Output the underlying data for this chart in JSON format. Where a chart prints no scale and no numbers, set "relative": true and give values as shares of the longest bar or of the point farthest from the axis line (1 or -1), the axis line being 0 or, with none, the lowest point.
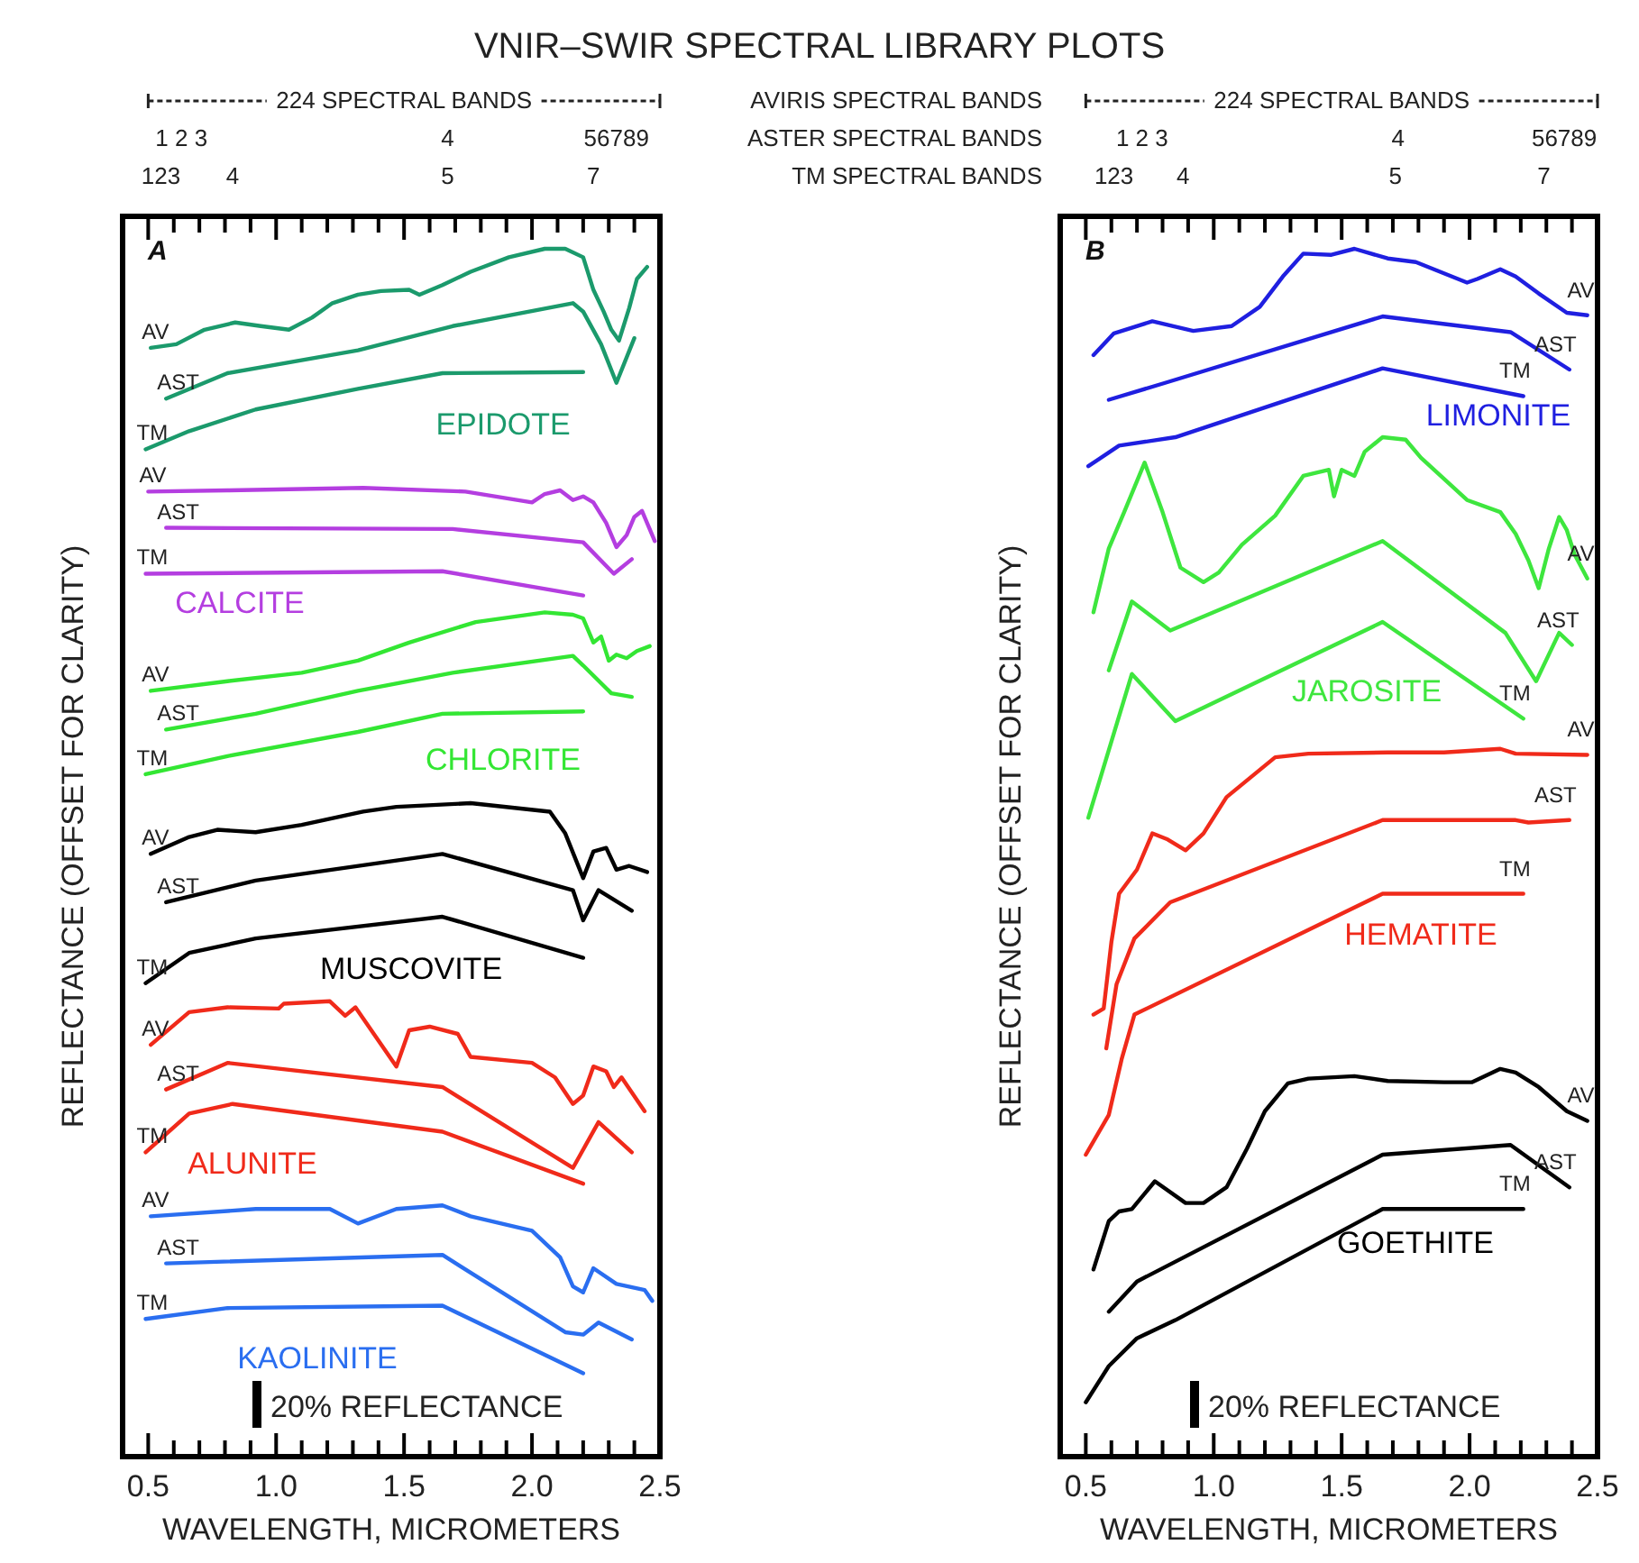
{
  "chart_data": [
    {
      "type": "line",
      "title": "VNIR–SWIR SPECTRAL LIBRARY PLOTS",
      "subtitle": "A",
      "xlabel": "WAVELENGTH, MICROMETERS",
      "ylabel": "REFLECTANCE (OFFSET FOR CLARITY)",
      "relative": true,
      "xlim": [
        0.4,
        2.5
      ],
      "xticks": [
        {
          "value": 0.5,
          "label": "0.5"
        },
        {
          "value": 0.6,
          "label": null
        },
        {
          "value": 0.7,
          "label": null
        },
        {
          "value": 0.8,
          "label": null
        },
        {
          "value": 0.9,
          "label": null
        },
        {
          "value": 1,
          "label": "1.0"
        },
        {
          "value": 1.1,
          "label": null
        },
        {
          "value": 1.2,
          "label": null
        },
        {
          "value": 1.3,
          "label": null
        },
        {
          "value": 1.4,
          "label": null
        },
        {
          "value": 1.5,
          "label": "1.5"
        },
        {
          "value": 1.6,
          "label": null
        },
        {
          "value": 1.7,
          "label": null
        },
        {
          "value": 1.8,
          "label": null
        },
        {
          "value": 1.9,
          "label": null
        },
        {
          "value": 2,
          "label": "2.0"
        },
        {
          "value": 2.1,
          "label": null
        },
        {
          "value": 2.2,
          "label": null
        },
        {
          "value": 2.3,
          "label": null
        },
        {
          "value": 2.4,
          "label": null
        },
        {
          "value": 2.5,
          "label": "2.5"
        }
      ],
      "series": [
        {
          "name": "AV",
          "color": "#1b9a6c",
          "x": [
            0.51,
            0.61,
            0.72,
            0.84,
            0.94,
            1.05,
            1.14,
            1.22,
            1.32,
            1.41,
            1.52,
            1.56,
            1.65,
            1.76,
            1.91,
            2.05,
            2.13,
            2.2,
            2.24,
            2.28,
            2.31,
            2.34,
            2.38,
            2.41,
            2.45
          ],
          "values": [
            0.918,
            0.921,
            0.933,
            0.939,
            0.936,
            0.933,
            0.943,
            0.955,
            0.962,
            0.965,
            0.966,
            0.962,
            0.97,
            0.981,
            0.993,
            1,
            1,
            0.993,
            0.966,
            0.948,
            0.933,
            0.924,
            0.951,
            0.975,
            0.985
          ]
        },
        {
          "name": "AST",
          "color": "#1b9a6c",
          "x": [
            0.57,
            0.81,
            1.32,
            1.69,
            2.16,
            2.2,
            2.27,
            2.33,
            2.4
          ],
          "values": [
            0.876,
            0.897,
            0.916,
            0.936,
            0.955,
            0.948,
            0.921,
            0.889,
            0.926
          ]
        },
        {
          "name": "TM",
          "color": "#1b9a6c",
          "x": [
            0.49,
            0.66,
            0.92,
            1.32,
            1.65,
            2.2
          ],
          "values": [
            0.834,
            0.849,
            0.867,
            0.884,
            0.897,
            0.898
          ]
        },
        {
          "name": "AV",
          "color": "#b43ee0",
          "x": [
            0.5,
            0.81,
            1.34,
            1.74,
            2,
            2.05,
            2.11,
            2.16,
            2.2,
            2.24,
            2.29,
            2.33,
            2.37,
            2.4,
            2.43,
            2.48
          ],
          "values": [
            0.799,
            0.8,
            0.802,
            0.799,
            0.79,
            0.797,
            0.8,
            0.792,
            0.795,
            0.79,
            0.773,
            0.753,
            0.763,
            0.778,
            0.783,
            0.758
          ]
        },
        {
          "name": "AST",
          "color": "#b43ee0",
          "x": [
            0.57,
            1.69,
            2.2,
            2.32,
            2.39
          ],
          "values": [
            0.769,
            0.768,
            0.757,
            0.731,
            0.743
          ]
        },
        {
          "name": "TM",
          "color": "#b43ee0",
          "x": [
            0.49,
            1.65,
            2.2
          ],
          "values": [
            0.731,
            0.733,
            0.713
          ]
        },
        {
          "name": "AV",
          "color": "#33e633",
          "x": [
            0.51,
            0.81,
            1.1,
            1.32,
            1.52,
            1.78,
            2.05,
            2.16,
            2.2,
            2.24,
            2.27,
            2.3,
            2.33,
            2.37,
            2.41,
            2.46
          ],
          "values": [
            0.634,
            0.642,
            0.649,
            0.659,
            0.674,
            0.691,
            0.699,
            0.697,
            0.694,
            0.674,
            0.679,
            0.659,
            0.664,
            0.661,
            0.667,
            0.671
          ]
        },
        {
          "name": "AST",
          "color": "#33e633",
          "x": [
            0.57,
            0.92,
            1.32,
            1.69,
            2.16,
            2.2,
            2.31,
            2.39
          ],
          "values": [
            0.602,
            0.615,
            0.634,
            0.649,
            0.663,
            0.655,
            0.632,
            0.629
          ]
        },
        {
          "name": "TM",
          "color": "#33e633",
          "x": [
            0.49,
            0.81,
            1.32,
            1.65,
            2.2
          ],
          "values": [
            0.565,
            0.58,
            0.6,
            0.615,
            0.617
          ]
        },
        {
          "name": "AV",
          "color": "#000000",
          "x": [
            0.51,
            0.66,
            0.77,
            0.92,
            1.1,
            1.34,
            1.47,
            1.76,
            2.07,
            2.13,
            2.2,
            2.24,
            2.29,
            2.33,
            2.38,
            2.45
          ],
          "values": [
            0.499,
            0.513,
            0.519,
            0.517,
            0.523,
            0.534,
            0.538,
            0.541,
            0.534,
            0.516,
            0.479,
            0.501,
            0.504,
            0.486,
            0.489,
            0.484
          ]
        },
        {
          "name": "AST",
          "color": "#000000",
          "x": [
            0.57,
            0.92,
            1.65,
            2.16,
            2.2,
            2.26,
            2.39
          ],
          "values": [
            0.459,
            0.477,
            0.499,
            0.469,
            0.444,
            0.469,
            0.452
          ]
        },
        {
          "name": "TM",
          "color": "#000000",
          "x": [
            0.49,
            0.66,
            0.92,
            1.65,
            2.2
          ],
          "values": [
            0.392,
            0.417,
            0.429,
            0.447,
            0.413
          ]
        },
        {
          "name": "AV",
          "color": "#f02a1a",
          "x": [
            0.51,
            0.66,
            0.81,
            1.01,
            1.03,
            1.21,
            1.27,
            1.31,
            1.47,
            1.52,
            1.6,
            1.71,
            1.76,
            2,
            2.09,
            2.16,
            2.2,
            2.24,
            2.29,
            2.32,
            2.35,
            2.44
          ],
          "values": [
            0.341,
            0.368,
            0.372,
            0.371,
            0.375,
            0.377,
            0.365,
            0.372,
            0.323,
            0.353,
            0.356,
            0.35,
            0.331,
            0.326,
            0.314,
            0.292,
            0.299,
            0.323,
            0.319,
            0.306,
            0.314,
            0.286
          ]
        },
        {
          "name": "AST",
          "color": "#f02a1a",
          "x": [
            0.57,
            0.81,
            1.65,
            2.16,
            2.26,
            2.39
          ],
          "values": [
            0.304,
            0.326,
            0.306,
            0.239,
            0.277,
            0.252
          ]
        },
        {
          "name": "TM",
          "color": "#f02a1a",
          "x": [
            0.49,
            0.66,
            0.83,
            1.65,
            2.2
          ],
          "values": [
            0.252,
            0.284,
            0.292,
            0.269,
            0.226
          ]
        },
        {
          "name": "AV",
          "color": "#2a6ef0",
          "x": [
            0.51,
            0.92,
            1.21,
            1.32,
            1.47,
            1.65,
            1.76,
            2,
            2.11,
            2.16,
            2.2,
            2.24,
            2.33,
            2.44,
            2.47
          ],
          "values": [
            0.199,
            0.205,
            0.205,
            0.193,
            0.205,
            0.208,
            0.199,
            0.187,
            0.165,
            0.141,
            0.136,
            0.156,
            0.143,
            0.138,
            0.129
          ]
        },
        {
          "name": "AST",
          "color": "#2a6ef0",
          "x": [
            0.57,
            1.65,
            2.13,
            2.2,
            2.26,
            2.39
          ],
          "values": [
            0.16,
            0.167,
            0.103,
            0.101,
            0.111,
            0.097
          ]
        },
        {
          "name": "TM",
          "color": "#2a6ef0",
          "x": [
            0.49,
            0.81,
            1.65,
            2.2
          ],
          "values": [
            0.114,
            0.123,
            0.125,
            0.069
          ]
        }
      ],
      "annotations": [
        "EPIDOTE",
        "CALCITE",
        "CHLORITE",
        "MUSCOVITE",
        "ALUNITE",
        "KAOLINITE",
        "224 SPECTRAL BANDS",
        "1 2 3",
        "4",
        "56789",
        "123",
        "4",
        "5",
        "7",
        "20% REFLECTANCE"
      ]
    },
    {
      "type": "line",
      "subtitle": "B",
      "xlabel": "WAVELENGTH, MICROMETERS",
      "ylabel": "REFLECTANCE (OFFSET FOR CLARITY)",
      "relative": true,
      "xlim": [
        0.4,
        2.5
      ],
      "xticks": [
        {
          "value": 0.5,
          "label": "0.5"
        },
        {
          "value": 0.6,
          "label": null
        },
        {
          "value": 0.7,
          "label": null
        },
        {
          "value": 0.8,
          "label": null
        },
        {
          "value": 0.9,
          "label": null
        },
        {
          "value": 1,
          "label": "1.0"
        },
        {
          "value": 1.1,
          "label": null
        },
        {
          "value": 1.2,
          "label": null
        },
        {
          "value": 1.3,
          "label": null
        },
        {
          "value": 1.4,
          "label": null
        },
        {
          "value": 1.5,
          "label": "1.5"
        },
        {
          "value": 1.6,
          "label": null
        },
        {
          "value": 1.7,
          "label": null
        },
        {
          "value": 1.8,
          "label": null
        },
        {
          "value": 1.9,
          "label": null
        },
        {
          "value": 2,
          "label": "2.0"
        },
        {
          "value": 2.1,
          "label": null
        },
        {
          "value": 2.2,
          "label": null
        },
        {
          "value": 2.3,
          "label": null
        },
        {
          "value": 2.4,
          "label": null
        },
        {
          "value": 2.5,
          "label": "2.5"
        }
      ],
      "series": [
        {
          "name": "AV",
          "color": "#1f1fe0",
          "x": [
            0.53,
            0.61,
            0.76,
            0.92,
            1.07,
            1.18,
            1.27,
            1.35,
            1.46,
            1.55,
            1.68,
            1.79,
            1.99,
            2.03,
            2.12,
            2.18,
            2.27,
            2.38,
            2.46
          ],
          "values": [
            0.912,
            0.93,
            0.94,
            0.932,
            0.936,
            0.952,
            0.977,
            0.996,
            0.995,
            1,
            0.992,
            0.989,
            0.972,
            0.975,
            0.983,
            0.977,
            0.963,
            0.947,
            0.945
          ]
        },
        {
          "name": "AST",
          "color": "#1f1fe0",
          "x": [
            0.59,
            0.81,
            1.66,
            2.16,
            2.39
          ],
          "values": [
            0.875,
            0.889,
            0.944,
            0.931,
            0.9
          ]
        },
        {
          "name": "TM",
          "color": "#1f1fe0",
          "x": [
            0.51,
            0.63,
            0.85,
            1.66,
            2.21
          ],
          "values": [
            0.82,
            0.837,
            0.844,
            0.901,
            0.878
          ]
        },
        {
          "name": "AV",
          "color": "#3ee63e",
          "x": [
            0.53,
            0.59,
            0.65,
            0.73,
            0.8,
            0.87,
            0.96,
            1.02,
            1.11,
            1.24,
            1.35,
            1.45,
            1.47,
            1.5,
            1.55,
            1.59,
            1.66,
            1.75,
            1.81,
            1.99,
            2.12,
            2.18,
            2.23,
            2.27,
            2.31,
            2.35,
            2.38,
            2.41,
            2.46
          ],
          "values": [
            0.699,
            0.752,
            0.782,
            0.823,
            0.782,
            0.736,
            0.724,
            0.732,
            0.755,
            0.779,
            0.812,
            0.817,
            0.795,
            0.817,
            0.812,
            0.832,
            0.844,
            0.842,
            0.827,
            0.792,
            0.782,
            0.764,
            0.742,
            0.719,
            0.752,
            0.778,
            0.767,
            0.747,
            0.727
          ]
        },
        {
          "name": "AST",
          "color": "#3ee63e",
          "x": [
            0.59,
            0.68,
            0.83,
            1.66,
            2.14,
            2.26,
            2.35,
            2.4
          ],
          "values": [
            0.651,
            0.708,
            0.684,
            0.758,
            0.682,
            0.642,
            0.682,
            0.672
          ]
        },
        {
          "name": "TM",
          "color": "#3ee63e",
          "x": [
            0.51,
            0.68,
            0.85,
            1.66,
            2.21
          ],
          "values": [
            0.529,
            0.648,
            0.609,
            0.691,
            0.611
          ]
        },
        {
          "name": "AV",
          "color": "#f02a1a",
          "x": [
            0.53,
            0.57,
            0.6,
            0.63,
            0.7,
            0.76,
            0.82,
            0.89,
            0.96,
            1.05,
            1.24,
            1.37,
            1.68,
            1.9,
            2.12,
            2.18,
            2.46
          ],
          "values": [
            0.366,
            0.371,
            0.426,
            0.466,
            0.486,
            0.516,
            0.511,
            0.502,
            0.516,
            0.546,
            0.579,
            0.582,
            0.583,
            0.583,
            0.586,
            0.582,
            0.581
          ]
        },
        {
          "name": "AST",
          "color": "#f02a1a",
          "x": [
            0.58,
            0.62,
            0.69,
            0.83,
            1.66,
            2.18,
            2.23,
            2.39
          ],
          "values": [
            0.338,
            0.391,
            0.429,
            0.459,
            0.527,
            0.527,
            0.525,
            0.527
          ]
        },
        {
          "name": "TM",
          "color": "#f02a1a",
          "x": [
            0.5,
            0.59,
            0.64,
            0.69,
            1.66,
            2.21
          ],
          "values": [
            0.25,
            0.283,
            0.329,
            0.366,
            0.466,
            0.466
          ]
        },
        {
          "name": "AV",
          "color": "#000000",
          "x": [
            0.53,
            0.59,
            0.63,
            0.68,
            0.77,
            0.89,
            0.96,
            1.05,
            1.13,
            1.2,
            1.29,
            1.37,
            1.55,
            1.68,
            1.9,
            2.01,
            2.12,
            2.18,
            2.27,
            2.38,
            2.46
          ],
          "values": [
            0.155,
            0.195,
            0.203,
            0.205,
            0.228,
            0.21,
            0.21,
            0.223,
            0.255,
            0.286,
            0.309,
            0.313,
            0.315,
            0.311,
            0.31,
            0.31,
            0.321,
            0.318,
            0.306,
            0.286,
            0.278
          ]
        },
        {
          "name": "AST",
          "color": "#000000",
          "x": [
            0.59,
            0.7,
            1.66,
            2.16,
            2.39
          ],
          "values": [
            0.12,
            0.145,
            0.25,
            0.258,
            0.223
          ]
        },
        {
          "name": "TM",
          "color": "#000000",
          "x": [
            0.5,
            0.59,
            0.7,
            0.85,
            1.66,
            2.21
          ],
          "values": [
            0.045,
            0.075,
            0.098,
            0.113,
            0.205,
            0.205
          ]
        }
      ],
      "annotations": [
        "LIMONITE",
        "JAROSITE",
        "HEMATITE",
        "GOETHITE",
        "224 SPECTRAL BANDS",
        "1 2 3",
        "4",
        "56789",
        "123",
        "4",
        "5",
        "7",
        "AVIRIS SPECTRAL BANDS",
        "ASTER SPECTRAL BANDS",
        "TM SPECTRAL BANDS",
        "20% REFLECTANCE"
      ]
    }
  ]
}
